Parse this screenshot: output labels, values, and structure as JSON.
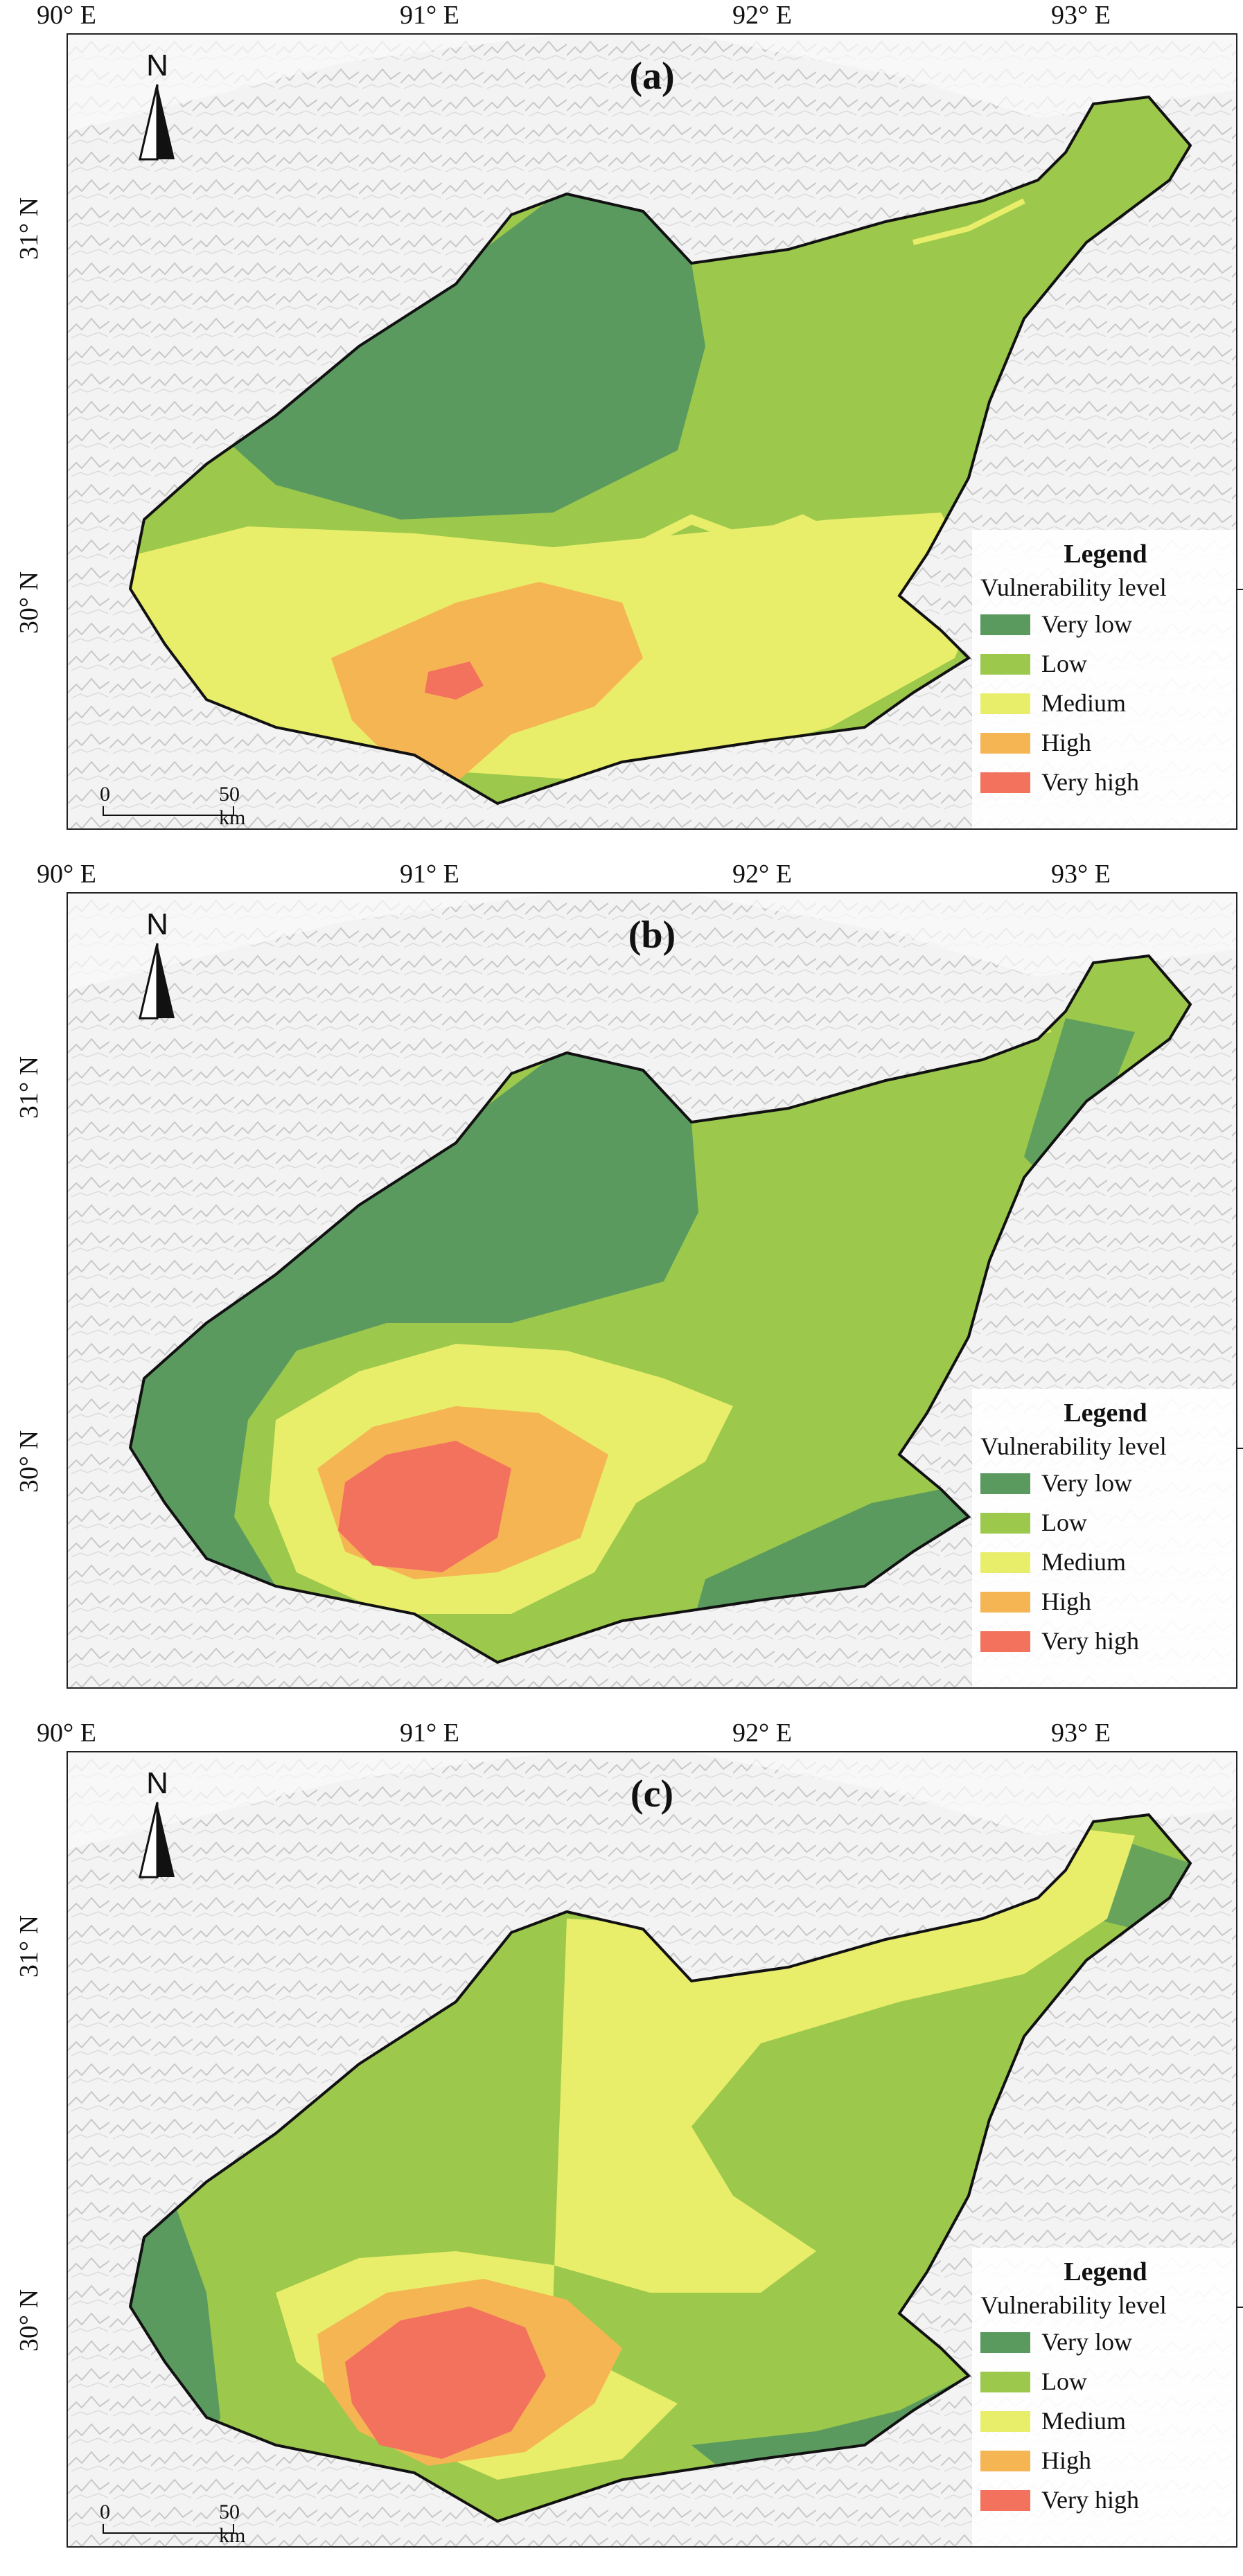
{
  "longitude_labels": [
    "90° E",
    "91° E",
    "92° E",
    "93° E"
  ],
  "latitude_labels": [
    "31° N",
    "30° N"
  ],
  "north_arrow": {
    "letter": "N",
    "icon": "north-arrow-icon"
  },
  "scale_bar": {
    "zero": "0",
    "distance": "50 km"
  },
  "legend": {
    "title": "Legend",
    "subtitle": "Vulnerability level",
    "items": [
      {
        "label": "Very low",
        "color": "#5a9a5f"
      },
      {
        "label": "Low",
        "color": "#9cc84c"
      },
      {
        "label": "Medium",
        "color": "#e9ee6a"
      },
      {
        "label": "High",
        "color": "#f5b553"
      },
      {
        "label": "Very high",
        "color": "#f2725e"
      }
    ]
  },
  "panels": [
    {
      "label": "(a)",
      "show_lon_labels": true,
      "zones": {
        "very_low": "north-west block",
        "low": "east and north",
        "medium": "south",
        "high": "south centre",
        "very_high": "small core"
      }
    },
    {
      "label": "(b)",
      "show_lon_labels": true,
      "zones": {
        "very_low": "west and north-west",
        "low": "central-east",
        "medium": "ring around core",
        "high": "ring around core",
        "very_high": "south centre"
      }
    },
    {
      "label": "(c)",
      "show_lon_labels": true,
      "zones": {
        "very_low": "far west and south-east edge",
        "low": "west and south",
        "medium": "north-east and centre",
        "high": "ring around core",
        "very_high": "south centre"
      }
    }
  ],
  "colors": {
    "terrain_bg": "#f2f2f2",
    "terrain_ridge": "#c9c9c9",
    "boundary": "#111111"
  }
}
